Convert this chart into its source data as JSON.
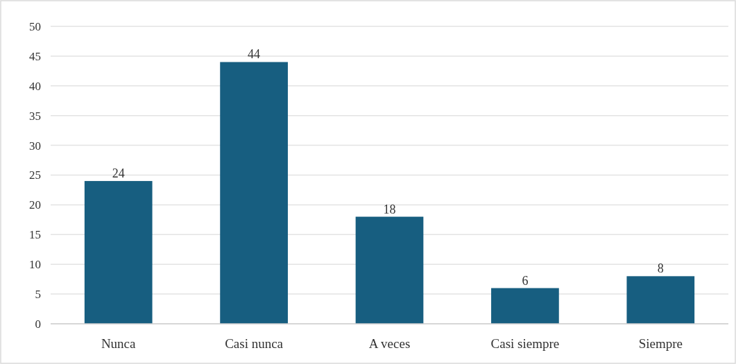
{
  "chart_data": {
    "type": "bar",
    "categories": [
      "Nunca",
      "Casi nunca",
      "A veces",
      "Casi siempre",
      "Siempre"
    ],
    "values": [
      24,
      44,
      18,
      6,
      8
    ],
    "color": "#175e80",
    "ylim": [
      0,
      50
    ],
    "yticks": [
      0,
      5,
      10,
      15,
      20,
      25,
      30,
      35,
      40,
      45,
      50
    ],
    "grid": "y",
    "data_labels": true
  }
}
